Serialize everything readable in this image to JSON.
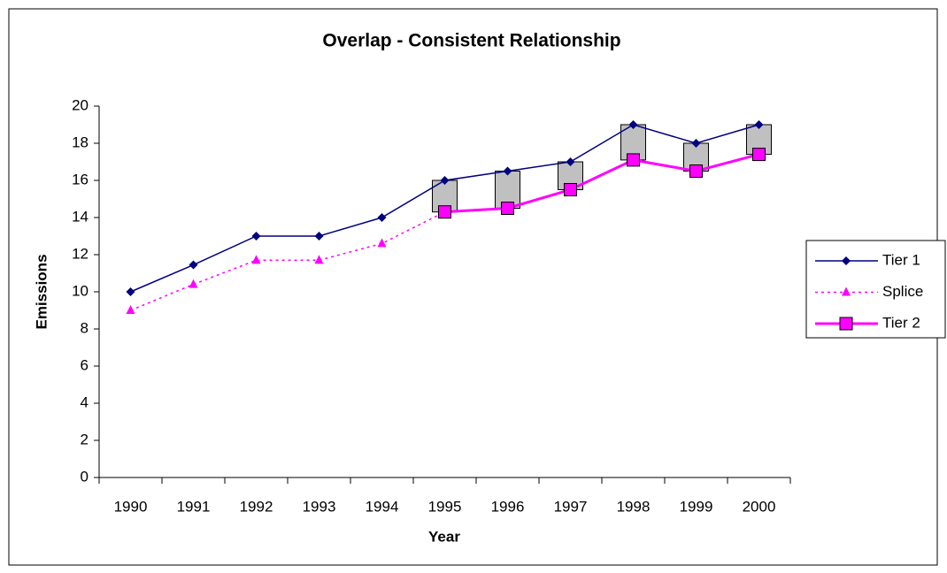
{
  "chart_data": {
    "type": "line",
    "title": "Overlap - Consistent Relationship",
    "x_label": "Year",
    "y_label": "Emissions",
    "categories": [
      "1990",
      "1991",
      "1992",
      "1993",
      "1994",
      "1995",
      "1996",
      "1997",
      "1998",
      "1999",
      "2000"
    ],
    "series": [
      {
        "name": "Tier 1",
        "color": "#000080",
        "marker": "diamond",
        "style": "solid",
        "values": [
          10,
          11.45,
          13,
          13,
          14,
          16,
          16.5,
          17,
          19,
          18,
          19
        ]
      },
      {
        "name": "Splice",
        "color": "#ff00ff",
        "marker": "triangle",
        "style": "dotted",
        "values": [
          9,
          10.4,
          11.7,
          11.7,
          12.6,
          14.3,
          14.5,
          15.5,
          17.1,
          16.5,
          17.4
        ]
      },
      {
        "name": "Tier 2",
        "color": "#ff00ff",
        "marker": "square",
        "style": "bold",
        "values": [
          null,
          null,
          null,
          null,
          null,
          14.3,
          14.5,
          15.5,
          17.1,
          16.5,
          17.4
        ]
      }
    ],
    "up_down_bars": true,
    "up_down_color": "#c0c0c0",
    "ylim": [
      0,
      20
    ],
    "yticks": [
      0,
      2,
      4,
      6,
      8,
      10,
      12,
      14,
      16,
      18,
      20
    ],
    "legend": "right"
  }
}
